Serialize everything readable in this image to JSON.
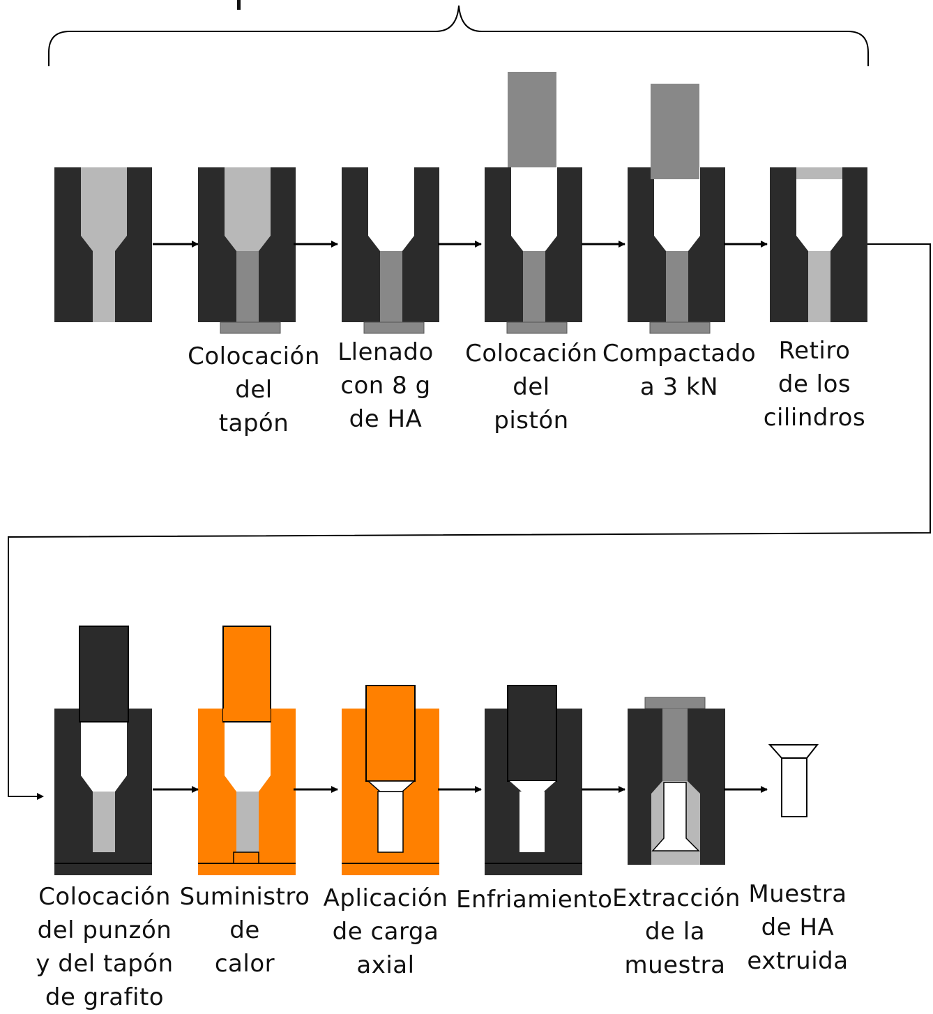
{
  "colors": {
    "die": "#2b2b2b",
    "powder": "#b8b8b8",
    "compacted": "#888888",
    "piston": "#888888",
    "heated": "#ff8000",
    "void": "#ffffff",
    "line": "#000000"
  },
  "steps_top": [
    {
      "label": []
    },
    {
      "label": [
        "Colocación",
        "del",
        "tapón"
      ]
    },
    {
      "label": [
        "Llenado",
        "con 8 g",
        "de HA"
      ]
    },
    {
      "label": [
        "Colocación",
        "del",
        "pistón"
      ]
    },
    {
      "label": [
        "Compactado",
        "a 3 kN"
      ]
    },
    {
      "label": [
        "Retiro",
        "de los",
        "cilindros"
      ]
    }
  ],
  "steps_bottom": [
    {
      "label": [
        "Colocación",
        "del punzón",
        "y del tapón",
        "de grafito"
      ]
    },
    {
      "label": [
        "Suministro",
        "de",
        "calor"
      ]
    },
    {
      "label": [
        "Aplicación",
        "de carga",
        "axial"
      ]
    },
    {
      "label": [
        "Enfriamiento"
      ]
    },
    {
      "label": [
        "Extracción",
        "de la",
        "muestra"
      ]
    },
    {
      "label": [
        "Muestra",
        "de HA",
        "extruida"
      ]
    }
  ]
}
